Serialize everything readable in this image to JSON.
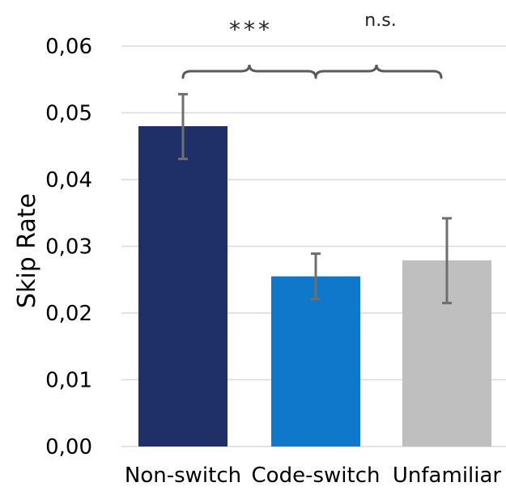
{
  "chart_data": {
    "type": "bar",
    "ylabel": "Skip Rate",
    "xlabel": "",
    "ylim": [
      0,
      0.06
    ],
    "yticks": [
      "0,00",
      "0,01",
      "0,02",
      "0,03",
      "0,04",
      "0,05",
      "0,06"
    ],
    "grid": true,
    "categories": [
      "Non-switch",
      "Code-switch",
      "Unfamiliar"
    ],
    "values": [
      0.048,
      0.0255,
      0.0279
    ],
    "error_low": [
      0.0431,
      0.0221,
      0.0215
    ],
    "error_high": [
      0.0528,
      0.0289,
      0.0342
    ],
    "colors": [
      "#1f3068",
      "#0f78ca",
      "#bfbfbf"
    ],
    "annotations": {
      "significant": "***",
      "not_significant": "n.s."
    }
  }
}
